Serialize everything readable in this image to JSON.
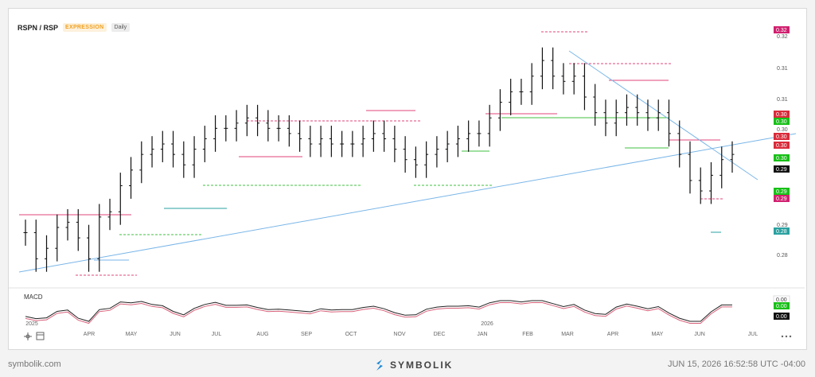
{
  "header": {
    "symbol": "RSPN / RSP",
    "badge": "EXPRESSION",
    "interval": "Daily"
  },
  "footer": {
    "site": "symbolik.com",
    "brand": "SYMBOLIK",
    "timestamp": "JUN 15, 2026 16:52:58 UTC -04:00"
  },
  "colors": {
    "up": "#111111",
    "pink": "#e0457b",
    "green": "#41c241",
    "blue": "#7ab6e8",
    "teal": "#2aa1a0",
    "red": "#d92b3a"
  },
  "chart_data": {
    "type": "line",
    "title": "RSPN / RSP",
    "x": [
      "2025-03-03",
      "2025-03-10",
      "2025-03-17",
      "2025-03-24",
      "2025-03-31",
      "2025-04-07",
      "2025-04-14",
      "2025-04-21",
      "2025-04-28",
      "2025-05-05",
      "2025-05-12",
      "2025-05-19",
      "2025-05-26",
      "2025-06-02",
      "2025-06-09",
      "2025-06-16",
      "2025-06-23",
      "2025-06-30",
      "2025-07-07",
      "2025-07-14",
      "2025-07-21",
      "2025-07-28",
      "2025-08-04",
      "2025-08-11",
      "2025-08-18",
      "2025-08-25",
      "2025-09-01",
      "2025-09-08",
      "2025-09-15",
      "2025-09-22",
      "2025-09-29",
      "2025-10-06",
      "2025-10-13",
      "2025-10-20",
      "2025-10-27",
      "2025-11-03",
      "2025-11-10",
      "2025-11-17",
      "2025-11-24",
      "2025-12-01",
      "2025-12-08",
      "2025-12-15",
      "2025-12-22",
      "2025-12-29",
      "2026-01-05",
      "2026-01-12",
      "2026-01-19",
      "2026-01-26",
      "2026-02-02",
      "2026-02-09",
      "2026-02-16",
      "2026-02-23",
      "2026-03-02",
      "2026-03-09",
      "2026-03-16",
      "2026-03-23",
      "2026-03-30",
      "2026-04-06",
      "2026-04-13",
      "2026-04-20",
      "2026-04-27",
      "2026-05-04",
      "2026-05-11",
      "2026-05-18",
      "2026-05-25",
      "2026-06-01",
      "2026-06-08",
      "2026-06-15"
    ],
    "series": [
      {
        "values": [
          0.284,
          0.279,
          0.281,
          0.285,
          0.286,
          0.283,
          0.279,
          0.287,
          0.288,
          0.293,
          0.296,
          0.299,
          0.3,
          0.301,
          0.299,
          0.297,
          0.3,
          0.302,
          0.304,
          0.304,
          0.305,
          0.306,
          0.305,
          0.304,
          0.304,
          0.303,
          0.302,
          0.301,
          0.302,
          0.301,
          0.301,
          0.301,
          0.302,
          0.303,
          0.302,
          0.3,
          0.298,
          0.297,
          0.299,
          0.3,
          0.301,
          0.302,
          0.303,
          0.303,
          0.306,
          0.309,
          0.311,
          0.311,
          0.314,
          0.317,
          0.314,
          0.313,
          0.314,
          0.31,
          0.307,
          0.305,
          0.307,
          0.308,
          0.307,
          0.306,
          0.307,
          0.303,
          0.299,
          0.294,
          0.292,
          0.295,
          0.298,
          0.299
        ]
      }
    ],
    "price_labels": [
      "0.32",
      "0.30",
      "0.30",
      "0.30",
      "0.30",
      "0.30",
      "0.29",
      "0.29",
      "0.29",
      "0.28"
    ],
    "y_ticks": [
      "0.32",
      "0.31",
      "0.31",
      "0.30",
      "0.30",
      "0.29",
      "0.29",
      "0.28"
    ],
    "x_ticks": [
      "2025",
      "APR",
      "MAY",
      "JUN",
      "JUL",
      "AUG",
      "SEP",
      "OCT",
      "NOV",
      "DEC",
      "JAN",
      "2026",
      "FEB",
      "MAR",
      "APR",
      "MAY",
      "JUN",
      "JUL"
    ],
    "ylim": [
      0.276,
      0.3225
    ],
    "macd": {
      "label": "MACD",
      "price_labels": [
        "0.00",
        "0.00",
        "0.00"
      ]
    }
  }
}
